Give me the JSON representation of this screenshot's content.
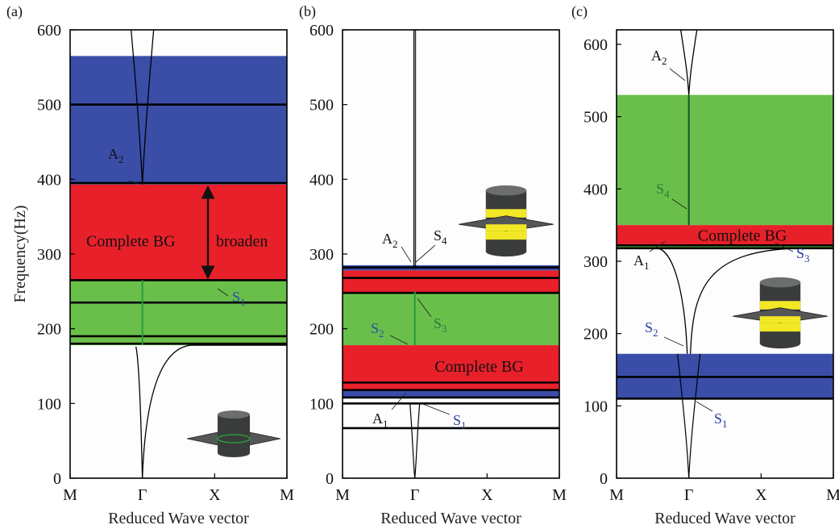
{
  "chart_data": [
    {
      "type": "band_structure",
      "panel_label": "(a)",
      "xlabel": "Reduced Wave vector",
      "ylabel": "Frequency(Hz)",
      "x_ticks": [
        "M",
        "Γ",
        "X",
        "M"
      ],
      "y_ticks": [
        "0",
        "100",
        "200",
        "300",
        "400",
        "500",
        "600"
      ],
      "ylim": [
        0,
        600
      ],
      "bands": [
        {
          "from": 393,
          "to": 565,
          "color": "#3a4ea8"
        },
        {
          "from": 265,
          "to": 393,
          "color": "#e8202a"
        },
        {
          "from": 178,
          "to": 265,
          "color": "#6abf4b"
        }
      ],
      "flat_lines": [
        500,
        395,
        265,
        235,
        190,
        180
      ],
      "band_labels": [
        {
          "text": "Complete BG",
          "y": 318,
          "x_frac": 0.28
        }
      ],
      "annotations": [
        {
          "text": "broaden",
          "color": "#111111"
        },
        {
          "main": "A",
          "sub": "2",
          "color": "#111111"
        },
        {
          "main": "S",
          "sub": "1",
          "color": "#2a4fa6"
        }
      ]
    },
    {
      "type": "band_structure",
      "panel_label": "(b)",
      "xlabel": "Reduced Wave vector",
      "ylabel": "",
      "x_ticks": [
        "M",
        "Γ",
        "X",
        "M"
      ],
      "y_ticks": [
        "0",
        "100",
        "200",
        "300",
        "400",
        "500",
        "600"
      ],
      "ylim": [
        0,
        600
      ],
      "bands": [
        {
          "from": 278,
          "to": 285,
          "color": "#3a4ea8"
        },
        {
          "from": 248,
          "to": 278,
          "color": "#e8202a"
        },
        {
          "from": 178,
          "to": 248,
          "color": "#6abf4b"
        },
        {
          "from": 118,
          "to": 178,
          "color": "#e8202a"
        },
        {
          "from": 108,
          "to": 118,
          "color": "#3a4ea8"
        }
      ],
      "flat_lines": [
        282,
        268,
        248,
        128,
        118,
        108,
        100,
        67
      ],
      "band_labels": [
        {
          "text": "Complete BG",
          "y": 150,
          "x_frac": 0.63
        }
      ],
      "annotations": [
        {
          "main": "A",
          "sub": "2",
          "color": "#111111"
        },
        {
          "main": "S",
          "sub": "4",
          "color": "#111111"
        },
        {
          "main": "S",
          "sub": "2",
          "color": "#2a4fa6"
        },
        {
          "main": "S",
          "sub": "3",
          "color": "#2a7a3a"
        },
        {
          "main": "A",
          "sub": "1",
          "color": "#111111"
        },
        {
          "main": "S",
          "sub": "1",
          "color": "#2a3fa6"
        }
      ]
    },
    {
      "type": "band_structure",
      "panel_label": "(c)",
      "xlabel": "Reduced Wave vector",
      "ylabel": "",
      "x_ticks": [
        "M",
        "Γ",
        "X",
        "M"
      ],
      "y_ticks": [
        "0",
        "100",
        "200",
        "300",
        "400",
        "500",
        "600"
      ],
      "ylim": [
        0,
        620
      ],
      "bands": [
        {
          "from": 350,
          "to": 530,
          "color": "#6abf4b"
        },
        {
          "from": 322,
          "to": 350,
          "color": "#e8202a"
        },
        {
          "from": 318,
          "to": 322,
          "color": "#6abf4b"
        },
        {
          "from": 110,
          "to": 172,
          "color": "#3a4ea8"
        }
      ],
      "flat_lines": [
        322,
        318,
        140,
        110
      ],
      "band_labels": [
        {
          "text": "Complete BG",
          "y": 336,
          "x_frac": 0.58
        }
      ],
      "annotations": [
        {
          "main": "A",
          "sub": "2",
          "color": "#111111"
        },
        {
          "main": "S",
          "sub": "4",
          "color": "#2a7a3a"
        },
        {
          "main": "A",
          "sub": "1",
          "color": "#111111"
        },
        {
          "main": "S",
          "sub": "3",
          "color": "#2a3fa6"
        },
        {
          "main": "S",
          "sub": "2",
          "color": "#2a3fa6"
        },
        {
          "main": "S",
          "sub": "1",
          "color": "#2a3fa6"
        }
      ]
    }
  ]
}
